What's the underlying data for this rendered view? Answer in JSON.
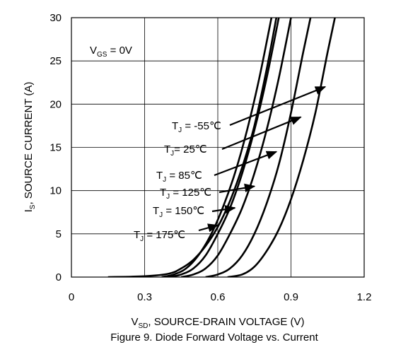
{
  "chart_data": {
    "type": "line",
    "title": "Figure 9. Diode Forward Voltage vs. Current",
    "xlabel": {
      "main": "V",
      "sub": "SD",
      "rest": ", SOURCE-DRAIN VOLTAGE (V)"
    },
    "ylabel": {
      "main": "I",
      "sub": "S",
      "rest": ", SOURCE CURRENT (A)"
    },
    "xlim": [
      0,
      1.2
    ],
    "ylim": [
      0,
      30
    ],
    "xticks": [
      0,
      0.3,
      0.6,
      0.9,
      1.2
    ],
    "xtick_labels": [
      "0",
      "0.3",
      "0.6",
      "0.9",
      "1.2"
    ],
    "yticks": [
      0,
      5,
      10,
      15,
      20,
      25,
      30
    ],
    "ytick_labels": [
      "0",
      "5",
      "10",
      "15",
      "20",
      "25",
      "30"
    ],
    "grid": true,
    "condition": {
      "main": "V",
      "sub": "GS",
      "rest": " = 0V"
    },
    "series": [
      {
        "name": "TJ = -55℃",
        "label": {
          "main": "T",
          "sub": "J",
          "rest": " = -55℃"
        },
        "points": [
          [
            0.64,
            0
          ],
          [
            0.7,
            0.3
          ],
          [
            0.75,
            1.2
          ],
          [
            0.8,
            3
          ],
          [
            0.85,
            5.5
          ],
          [
            0.9,
            9
          ],
          [
            0.95,
            13.5
          ],
          [
            1.0,
            19
          ],
          [
            1.05,
            26
          ],
          [
            1.08,
            30
          ]
        ],
        "arrow_at": [
          1.04,
          22
        ]
      },
      {
        "name": "TJ = 25℃",
        "label": {
          "main": "T",
          "sub": "J",
          "rest": "= 25℃"
        },
        "points": [
          [
            0.55,
            0
          ],
          [
            0.6,
            0.3
          ],
          [
            0.65,
            1
          ],
          [
            0.7,
            2.5
          ],
          [
            0.75,
            5
          ],
          [
            0.8,
            8.5
          ],
          [
            0.85,
            13
          ],
          [
            0.9,
            19
          ],
          [
            0.95,
            26
          ],
          [
            0.98,
            30
          ]
        ],
        "arrow_at": [
          0.94,
          18.5
        ]
      },
      {
        "name": "TJ = 85℃",
        "label": {
          "main": "T",
          "sub": "J",
          "rest": " = 85℃"
        },
        "points": [
          [
            0.45,
            0
          ],
          [
            0.5,
            0.3
          ],
          [
            0.55,
            1
          ],
          [
            0.6,
            2.5
          ],
          [
            0.65,
            5
          ],
          [
            0.7,
            8
          ],
          [
            0.75,
            12
          ],
          [
            0.8,
            17
          ],
          [
            0.85,
            23
          ],
          [
            0.9,
            30
          ]
        ],
        "arrow_at": [
          0.84,
          14.5
        ]
      },
      {
        "name": "TJ = 125℃",
        "label": {
          "main": "T",
          "sub": "J",
          "rest": " = 125℃"
        },
        "points": [
          [
            0.4,
            0
          ],
          [
            0.45,
            0.3
          ],
          [
            0.5,
            1
          ],
          [
            0.55,
            2.5
          ],
          [
            0.6,
            5
          ],
          [
            0.65,
            8
          ],
          [
            0.7,
            12
          ],
          [
            0.75,
            17
          ],
          [
            0.8,
            23
          ],
          [
            0.85,
            30
          ]
        ],
        "arrow_at": [
          0.75,
          10.5
        ]
      },
      {
        "name": "TJ = 150℃",
        "label": {
          "main": "T",
          "sub": "J",
          "rest": " = 150℃"
        },
        "points": [
          [
            0.37,
            0
          ],
          [
            0.42,
            0.3
          ],
          [
            0.47,
            1
          ],
          [
            0.52,
            2.5
          ],
          [
            0.57,
            4.8
          ],
          [
            0.62,
            8
          ],
          [
            0.67,
            12
          ],
          [
            0.72,
            17
          ],
          [
            0.77,
            23
          ],
          [
            0.82,
            30
          ]
        ],
        "arrow_at": [
          0.67,
          8
        ]
      },
      {
        "name": "TJ = 175℃",
        "label": {
          "main": "T",
          "sub": "J",
          "rest": " = 175℃"
        },
        "points": [
          [
            0.15,
            0
          ],
          [
            0.3,
            0.1
          ],
          [
            0.4,
            0.4
          ],
          [
            0.45,
            1
          ],
          [
            0.5,
            2
          ],
          [
            0.55,
            3.6
          ],
          [
            0.6,
            5.8
          ],
          [
            0.65,
            8.8
          ],
          [
            0.7,
            12.7
          ],
          [
            0.75,
            17.5
          ],
          [
            0.8,
            24
          ],
          [
            0.84,
            30
          ]
        ],
        "arrow_at": [
          0.6,
          6
        ]
      }
    ]
  }
}
